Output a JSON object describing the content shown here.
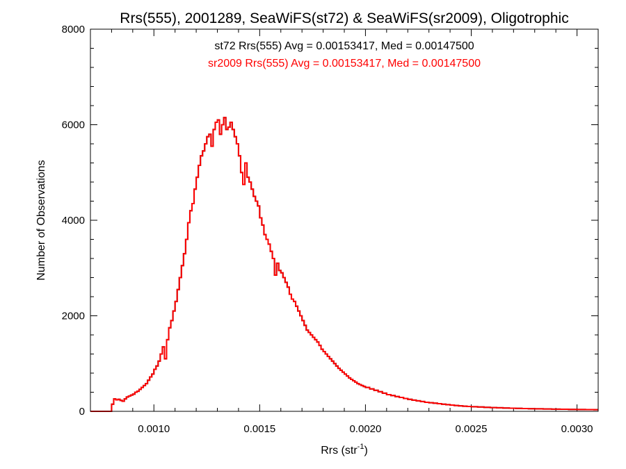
{
  "chart_data": {
    "type": "histogram-step",
    "title": "Rrs(555), 2001289, SeaWiFS(st72) & SeaWiFS(sr2009), Oligotrophic",
    "xlabel_main": "Rrs (str",
    "xlabel_sup": "-1",
    "xlabel_close": ")",
    "ylabel": "Number of Observations",
    "xlim": [
      0.0007,
      0.0031
    ],
    "ylim": [
      0,
      8000
    ],
    "x_ticks": [
      0.001,
      0.0015,
      0.002,
      0.0025,
      0.003
    ],
    "x_tick_labels": [
      "0.0010",
      "0.0015",
      "0.0020",
      "0.0025",
      "0.0030"
    ],
    "x_minor_step": 0.0001,
    "y_ticks": [
      0,
      2000,
      4000,
      6000,
      8000
    ],
    "y_tick_labels": [
      "0",
      "2000",
      "4000",
      "6000",
      "8000"
    ],
    "y_minor_step": 400,
    "grid": false,
    "annotations": [
      {
        "text": "st72 Rrs(555) Avg = 0.00153417, Med = 0.00147500",
        "color": "#000000"
      },
      {
        "text": "sr2009 Rrs(555) Avg = 0.00153417, Med = 0.00147500",
        "color": "#ff0000"
      }
    ],
    "series": [
      {
        "color": "#000000",
        "overlaid": true
      },
      {
        "color": "#ff0000",
        "overlaid": false
      }
    ],
    "x": [
      0.0007,
      0.0008,
      0.00081,
      0.00082,
      0.00083,
      0.00084,
      0.00085,
      0.00086,
      0.00087,
      0.00088,
      0.00089,
      0.0009,
      0.00091,
      0.00092,
      0.00093,
      0.00094,
      0.00095,
      0.00096,
      0.00097,
      0.00098,
      0.00099,
      0.001,
      0.00101,
      0.00102,
      0.00103,
      0.00104,
      0.00105,
      0.00106,
      0.00107,
      0.00108,
      0.00109,
      0.0011,
      0.00111,
      0.00112,
      0.00113,
      0.00114,
      0.00115,
      0.00116,
      0.00117,
      0.00118,
      0.00119,
      0.0012,
      0.00121,
      0.00122,
      0.00123,
      0.00124,
      0.00125,
      0.00126,
      0.00127,
      0.00128,
      0.00129,
      0.0013,
      0.00131,
      0.00132,
      0.00133,
      0.00134,
      0.00135,
      0.00136,
      0.00137,
      0.00138,
      0.00139,
      0.0014,
      0.00141,
      0.00142,
      0.00143,
      0.00144,
      0.00145,
      0.00146,
      0.00147,
      0.00148,
      0.00149,
      0.0015,
      0.00151,
      0.00152,
      0.00153,
      0.00154,
      0.00155,
      0.00156,
      0.00157,
      0.00158,
      0.00159,
      0.0016,
      0.00161,
      0.00162,
      0.00163,
      0.00164,
      0.00165,
      0.00166,
      0.00167,
      0.00168,
      0.00169,
      0.0017,
      0.00171,
      0.00172,
      0.00173,
      0.00174,
      0.00175,
      0.00176,
      0.00177,
      0.00178,
      0.00179,
      0.0018,
      0.00181,
      0.00182,
      0.00183,
      0.00184,
      0.00185,
      0.00186,
      0.00187,
      0.00188,
      0.00189,
      0.0019,
      0.00191,
      0.00192,
      0.00193,
      0.00194,
      0.00195,
      0.00196,
      0.00197,
      0.00198,
      0.00199,
      0.002,
      0.00202,
      0.00204,
      0.00206,
      0.00208,
      0.0021,
      0.00212,
      0.00214,
      0.00216,
      0.00218,
      0.0022,
      0.00222,
      0.00224,
      0.00226,
      0.00228,
      0.0023,
      0.00232,
      0.00234,
      0.00236,
      0.00238,
      0.0024,
      0.00242,
      0.00244,
      0.00246,
      0.00248,
      0.0025,
      0.00253,
      0.00256,
      0.00259,
      0.00262,
      0.00265,
      0.00268,
      0.00271,
      0.00274,
      0.00277,
      0.0028,
      0.00284,
      0.00288,
      0.00292,
      0.00296,
      0.003,
      0.00304,
      0.00308
    ],
    "y": [
      0,
      150,
      260,
      240,
      250,
      230,
      210,
      260,
      300,
      320,
      340,
      360,
      400,
      420,
      460,
      500,
      540,
      580,
      650,
      720,
      780,
      880,
      950,
      1050,
      1200,
      1350,
      1100,
      1500,
      1750,
      1900,
      2100,
      2300,
      2550,
      2800,
      3050,
      3300,
      3600,
      3950,
      4200,
      4350,
      4650,
      4900,
      5150,
      5350,
      5450,
      5600,
      5750,
      5800,
      5550,
      5900,
      6050,
      6100,
      5800,
      6000,
      6150,
      5900,
      5950,
      6050,
      5900,
      5750,
      5600,
      5350,
      5000,
      4750,
      5200,
      4900,
      4800,
      4650,
      4500,
      4400,
      4300,
      4050,
      3900,
      3700,
      3600,
      3500,
      3350,
      3200,
      2850,
      3100,
      2950,
      2900,
      2800,
      2700,
      2600,
      2450,
      2350,
      2300,
      2200,
      2100,
      2000,
      1900,
      1800,
      1700,
      1650,
      1600,
      1550,
      1500,
      1450,
      1380,
      1300,
      1250,
      1200,
      1150,
      1100,
      1050,
      1000,
      950,
      900,
      860,
      820,
      780,
      740,
      700,
      670,
      640,
      610,
      580,
      560,
      540,
      520,
      500,
      470,
      440,
      410,
      380,
      350,
      330,
      310,
      290,
      270,
      250,
      235,
      220,
      205,
      190,
      180,
      170,
      160,
      150,
      140,
      130,
      122,
      115,
      108,
      102,
      96,
      90,
      84,
      79,
      74,
      70,
      66,
      62,
      58,
      55,
      52,
      49,
      46,
      43,
      40,
      38,
      36,
      34
    ]
  }
}
